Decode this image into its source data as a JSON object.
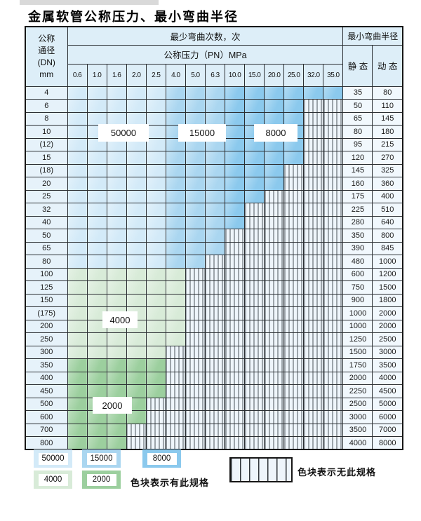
{
  "title": "金属软管公称压力、最小弯曲半径",
  "colors": {
    "c50000": "#d3eaf8",
    "c15000": "#aad6f0",
    "c8000": "#8bc9ed",
    "c4000": "#d8ebd8",
    "c2000": "#9ccf9e",
    "hatch_bg": "#eef5fb",
    "hatch_line": "#49525a",
    "header_bg": "#ddeef8",
    "dn_bg": "#e6f2fa",
    "radius_bg": "#f1f8fd"
  },
  "table": {
    "header": {
      "dn_label_lines": [
        "公称",
        "通径",
        "(DN)",
        "mm"
      ],
      "bend_cycles_label": "最少弯曲次数，次",
      "pn_label": "公称压力（PN）MPa",
      "min_radius_label": "最小弯曲半径",
      "static_label": "静 态",
      "dynamic_label": "动 态"
    },
    "pn_columns": [
      "0.6",
      "1.0",
      "1.6",
      "2.0",
      "2.5",
      "4.0",
      "5.0",
      "6.3",
      "10.0",
      "15.0",
      "20.0",
      "25.0",
      "32.0",
      "35.0"
    ],
    "zone_cycle_values": {
      "blue_pn_0.6_to_2.5": "50000",
      "blue_pn_4.0_to_6.3": "15000",
      "blue_pn_10.0_to_35.0": "8000",
      "green_light": "4000",
      "green_dark": "2000"
    },
    "rows": [
      {
        "dn": "4",
        "zone": "blue",
        "max_pn": "35.0",
        "static": "35",
        "dynamic": "80"
      },
      {
        "dn": "6",
        "zone": "blue",
        "max_pn": "25.0",
        "static": "50",
        "dynamic": "110"
      },
      {
        "dn": "8",
        "zone": "blue",
        "max_pn": "25.0",
        "static": "65",
        "dynamic": "145"
      },
      {
        "dn": "10",
        "zone": "blue",
        "max_pn": "25.0",
        "static": "80",
        "dynamic": "180"
      },
      {
        "dn": "(12)",
        "zone": "blue",
        "max_pn": "25.0",
        "static": "95",
        "dynamic": "215"
      },
      {
        "dn": "15",
        "zone": "blue",
        "max_pn": "25.0",
        "static": "120",
        "dynamic": "270"
      },
      {
        "dn": "(18)",
        "zone": "blue",
        "max_pn": "20.0",
        "static": "145",
        "dynamic": "325"
      },
      {
        "dn": "20",
        "zone": "blue",
        "max_pn": "20.0",
        "static": "160",
        "dynamic": "360"
      },
      {
        "dn": "25",
        "zone": "blue",
        "max_pn": "15.0",
        "static": "175",
        "dynamic": "400"
      },
      {
        "dn": "32",
        "zone": "blue",
        "max_pn": "10.0",
        "static": "225",
        "dynamic": "510"
      },
      {
        "dn": "40",
        "zone": "blue",
        "max_pn": "10.0",
        "static": "280",
        "dynamic": "640"
      },
      {
        "dn": "50",
        "zone": "blue",
        "max_pn": "6.3",
        "static": "350",
        "dynamic": "800"
      },
      {
        "dn": "65",
        "zone": "blue",
        "max_pn": "6.3",
        "static": "390",
        "dynamic": "845"
      },
      {
        "dn": "80",
        "zone": "blue",
        "max_pn": "5.0",
        "static": "480",
        "dynamic": "1000"
      },
      {
        "dn": "100",
        "zone": "green-4000",
        "max_pn": "4.0",
        "static": "600",
        "dynamic": "1200"
      },
      {
        "dn": "125",
        "zone": "green-4000",
        "max_pn": "4.0",
        "static": "750",
        "dynamic": "1500"
      },
      {
        "dn": "150",
        "zone": "green-4000",
        "max_pn": "4.0",
        "static": "900",
        "dynamic": "1800"
      },
      {
        "dn": "(175)",
        "zone": "green-4000",
        "max_pn": "4.0",
        "static": "1000",
        "dynamic": "2000"
      },
      {
        "dn": "200",
        "zone": "green-4000",
        "max_pn": "4.0",
        "static": "1000",
        "dynamic": "2000"
      },
      {
        "dn": "250",
        "zone": "green-4000",
        "max_pn": "4.0",
        "static": "1250",
        "dynamic": "2500"
      },
      {
        "dn": "300",
        "zone": "green-4000",
        "max_pn": "2.5",
        "static": "1500",
        "dynamic": "3000"
      },
      {
        "dn": "350",
        "zone": "green-2000",
        "max_pn": "2.5",
        "static": "1750",
        "dynamic": "3500"
      },
      {
        "dn": "400",
        "zone": "green-2000",
        "max_pn": "2.5",
        "static": "2000",
        "dynamic": "4000"
      },
      {
        "dn": "450",
        "zone": "green-2000",
        "max_pn": "2.5",
        "static": "2250",
        "dynamic": "4500"
      },
      {
        "dn": "500",
        "zone": "green-2000",
        "max_pn": "2.0",
        "static": "2500",
        "dynamic": "5000"
      },
      {
        "dn": "600",
        "zone": "green-2000",
        "max_pn": "2.0",
        "static": "3000",
        "dynamic": "6000"
      },
      {
        "dn": "700",
        "zone": "green-2000",
        "max_pn": "1.6",
        "static": "3500",
        "dynamic": "7000"
      },
      {
        "dn": "800",
        "zone": "green-2000",
        "max_pn": "1.6",
        "static": "4000",
        "dynamic": "8000"
      }
    ],
    "region_labels": {
      "l50000": "50000",
      "l15000": "15000",
      "l8000": "8000",
      "l4000": "4000",
      "l2000": "2000"
    }
  },
  "legend": {
    "swatches": [
      {
        "value": "50000",
        "color": "#d3eaf8"
      },
      {
        "value": "15000",
        "color": "#aad6f0"
      },
      {
        "value": "8000",
        "color": "#8bc9ed"
      },
      {
        "value": "4000",
        "color": "#d8ebd8"
      },
      {
        "value": "2000",
        "color": "#9ccf9e"
      }
    ],
    "has_spec_note": "色块表示有此规格",
    "no_spec_note": "色块表示无此规格"
  }
}
